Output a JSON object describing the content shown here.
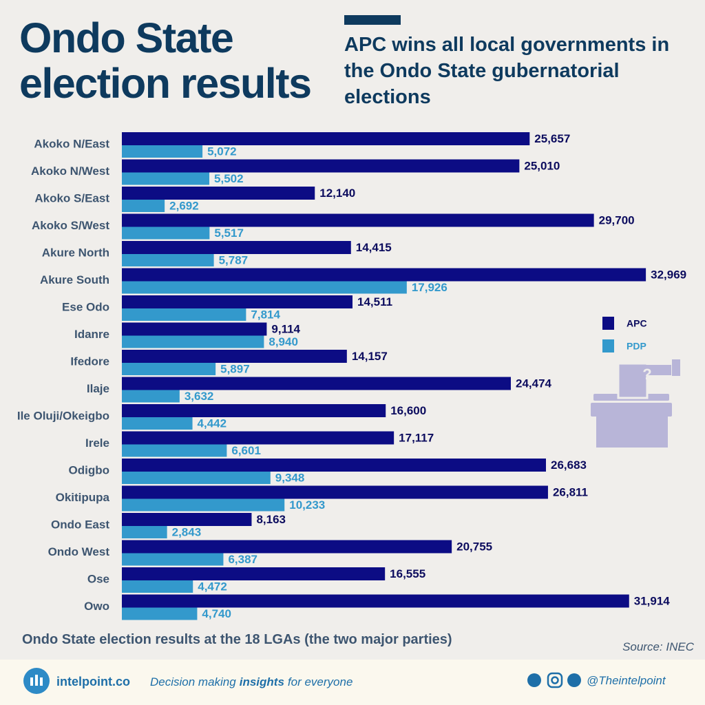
{
  "chart_data": {
    "type": "bar",
    "orientation": "horizontal",
    "title": "Ondo State election results",
    "subtitle": "APC wins all local governments in the Ondo State gubernatorial elections",
    "caption": "Ondo State election results at the 18 LGAs (the two major parties)",
    "source": "Source: INEC",
    "categories": [
      "Akoko N/East",
      "Akoko N/West",
      "Akoko S/East",
      "Akoko S/West",
      "Akure North",
      "Akure South",
      "Ese Odo",
      "Idanre",
      "Ifedore",
      "Ilaje",
      "Ile Oluji/Okeigbo",
      "Irele",
      "Odigbo",
      "Okitipupa",
      "Ondo East",
      "Ondo West",
      "Ose",
      "Owo"
    ],
    "series": [
      {
        "name": "APC",
        "color": "#0c0c84",
        "values": [
          25657,
          25010,
          12140,
          29700,
          14415,
          32969,
          14511,
          9114,
          14157,
          24474,
          16600,
          17117,
          26683,
          26811,
          8163,
          20755,
          16555,
          31914
        ],
        "value_labels": [
          "25,657",
          "25,010",
          "12,140",
          "29,700",
          "14,415",
          "32,969",
          "14,511",
          "9,114",
          "14,157",
          "24,474",
          "16,600",
          "17,117",
          "26,683",
          "26,811",
          "8,163",
          "20,755",
          "16,555",
          "31,914"
        ]
      },
      {
        "name": "PDP",
        "color": "#3399cc",
        "values": [
          5072,
          5502,
          2692,
          5517,
          5787,
          17926,
          7814,
          8940,
          5897,
          3632,
          4442,
          6601,
          9348,
          10233,
          2843,
          6387,
          4472,
          4740
        ],
        "value_labels": [
          "5,072",
          "5,502",
          "2,692",
          "5,517",
          "5,787",
          "17,926",
          "7,814",
          "8,940",
          "5,897",
          "3,632",
          "4,442",
          "6,601",
          "9,348",
          "10,233",
          "2,843",
          "6,387",
          "4,472",
          "4,740"
        ]
      }
    ],
    "xlim": [
      0,
      35000
    ],
    "legend": "right"
  },
  "footer": {
    "brand": "intelpoint.co",
    "tagline": [
      "Decision making",
      "insights",
      "for everyone"
    ],
    "handle": "@Theintelpoint"
  }
}
